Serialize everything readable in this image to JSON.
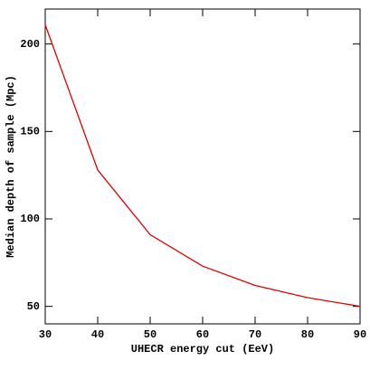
{
  "chart_data": {
    "type": "line",
    "x_label": "UHECR energy cut (EeV)",
    "y_label": "Median depth of sample (Mpc)",
    "x": [
      30,
      40,
      50,
      60,
      70,
      80,
      90
    ],
    "series": [
      {
        "name": "median depth",
        "color": "#e00000",
        "values": [
          211,
          128,
          91,
          73,
          62,
          55,
          50
        ]
      }
    ],
    "xlim": [
      30,
      90
    ],
    "xticks": [
      30,
      40,
      50,
      60,
      70,
      80,
      90
    ],
    "ylim": [
      40,
      220
    ],
    "yticks": [
      50,
      100,
      150,
      200
    ],
    "grid": false,
    "legend": false
  }
}
